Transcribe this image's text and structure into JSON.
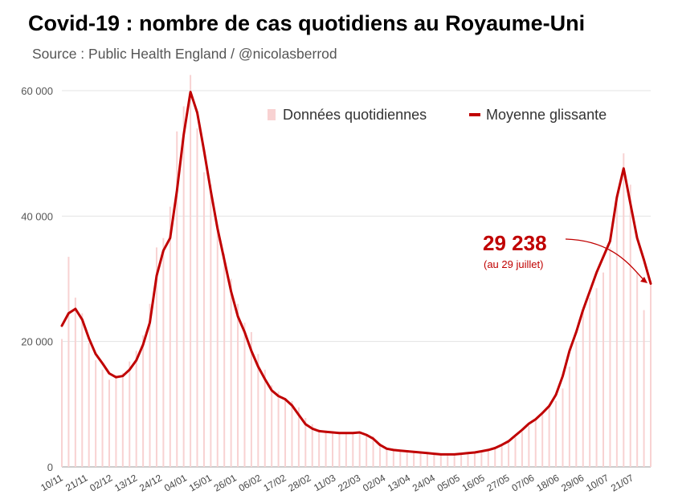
{
  "chart_data": {
    "type": "bar",
    "title": "Covid-19 : nombre de cas quotidiens au Royaume-Uni",
    "subtitle": "Source : Public Health England / @nicolasberrod",
    "ylim": [
      0,
      60000
    ],
    "y_ticks": [
      "0",
      "20 000",
      "40 000",
      "60 000"
    ],
    "grid": true,
    "legend_position": "top-right",
    "x_ticks": [
      "10/11",
      "21/11",
      "02/12",
      "13/12",
      "24/12",
      "04/01",
      "15/01",
      "26/01",
      "06/02",
      "17/02",
      "28/02",
      "11/03",
      "22/03",
      "02/04",
      "13/04",
      "24/04",
      "05/05",
      "16/05",
      "27/05",
      "07/06",
      "18/06",
      "29/06",
      "10/07",
      "21/07"
    ],
    "x_range": [
      "2020-11-10",
      "2021-07-29"
    ],
    "series": [
      {
        "name": "Données quotidiennes",
        "kind": "bar",
        "color": "#f8d2d2",
        "x": [
          "2020-11-10",
          "2020-11-13",
          "2020-11-16",
          "2020-11-19",
          "2020-11-22",
          "2020-11-25",
          "2020-11-28",
          "2020-12-01",
          "2020-12-04",
          "2020-12-07",
          "2020-12-10",
          "2020-12-13",
          "2020-12-16",
          "2020-12-19",
          "2020-12-22",
          "2020-12-25",
          "2020-12-28",
          "2020-12-31",
          "2021-01-03",
          "2021-01-06",
          "2021-01-09",
          "2021-01-12",
          "2021-01-15",
          "2021-01-18",
          "2021-01-21",
          "2021-01-24",
          "2021-01-27",
          "2021-01-30",
          "2021-02-02",
          "2021-02-05",
          "2021-02-08",
          "2021-02-11",
          "2021-02-14",
          "2021-02-17",
          "2021-02-20",
          "2021-02-23",
          "2021-02-26",
          "2021-03-01",
          "2021-03-04",
          "2021-03-07",
          "2021-03-10",
          "2021-03-13",
          "2021-03-16",
          "2021-03-19",
          "2021-03-22",
          "2021-03-25",
          "2021-03-28",
          "2021-03-31",
          "2021-04-03",
          "2021-04-06",
          "2021-04-09",
          "2021-04-12",
          "2021-04-15",
          "2021-04-18",
          "2021-04-21",
          "2021-04-24",
          "2021-04-27",
          "2021-04-30",
          "2021-05-03",
          "2021-05-06",
          "2021-05-09",
          "2021-05-12",
          "2021-05-15",
          "2021-05-18",
          "2021-05-21",
          "2021-05-24",
          "2021-05-27",
          "2021-05-30",
          "2021-06-02",
          "2021-06-05",
          "2021-06-08",
          "2021-06-11",
          "2021-06-14",
          "2021-06-17",
          "2021-06-20",
          "2021-06-23",
          "2021-06-26",
          "2021-06-29",
          "2021-07-02",
          "2021-07-05",
          "2021-07-08",
          "2021-07-11",
          "2021-07-14",
          "2021-07-17",
          "2021-07-20",
          "2021-07-23",
          "2021-07-26",
          "2021-07-29"
        ],
        "values": [
          20400,
          33500,
          27000,
          24500,
          19800,
          17000,
          15500,
          13900,
          14600,
          15000,
          16800,
          18500,
          21000,
          26000,
          35000,
          36500,
          41500,
          53500,
          57500,
          62500,
          54000,
          47000,
          45000,
          38000,
          34000,
          30000,
          26000,
          23000,
          21500,
          18000,
          15500,
          13000,
          12000,
          11000,
          10500,
          9500,
          7800,
          6800,
          6000,
          5800,
          5700,
          5500,
          5500,
          5400,
          5500,
          5200,
          4900,
          3800,
          3000,
          2600,
          2500,
          2500,
          2400,
          2300,
          2200,
          2100,
          2000,
          1900,
          1900,
          2100,
          2200,
          2300,
          2500,
          2700,
          2900,
          3300,
          3900,
          4700,
          5600,
          6500,
          7500,
          8600,
          9500,
          10500,
          12500,
          16000,
          20000,
          25000,
          27000,
          28500,
          31000,
          35000,
          42000,
          50000,
          45000,
          31000,
          25000,
          29238
        ]
      },
      {
        "name": "Moyenne glissante",
        "kind": "line",
        "color": "#c00000",
        "x": [
          "2020-11-10",
          "2020-11-13",
          "2020-11-16",
          "2020-11-19",
          "2020-11-22",
          "2020-11-25",
          "2020-11-28",
          "2020-12-01",
          "2020-12-04",
          "2020-12-07",
          "2020-12-10",
          "2020-12-13",
          "2020-12-16",
          "2020-12-19",
          "2020-12-22",
          "2020-12-25",
          "2020-12-28",
          "2020-12-31",
          "2021-01-03",
          "2021-01-06",
          "2021-01-09",
          "2021-01-12",
          "2021-01-15",
          "2021-01-18",
          "2021-01-21",
          "2021-01-24",
          "2021-01-27",
          "2021-01-30",
          "2021-02-02",
          "2021-02-05",
          "2021-02-08",
          "2021-02-11",
          "2021-02-14",
          "2021-02-17",
          "2021-02-20",
          "2021-02-23",
          "2021-02-26",
          "2021-03-01",
          "2021-03-04",
          "2021-03-07",
          "2021-03-10",
          "2021-03-13",
          "2021-03-16",
          "2021-03-19",
          "2021-03-22",
          "2021-03-25",
          "2021-03-28",
          "2021-03-31",
          "2021-04-03",
          "2021-04-06",
          "2021-04-09",
          "2021-04-12",
          "2021-04-15",
          "2021-04-18",
          "2021-04-21",
          "2021-04-24",
          "2021-04-27",
          "2021-04-30",
          "2021-05-03",
          "2021-05-06",
          "2021-05-09",
          "2021-05-12",
          "2021-05-15",
          "2021-05-18",
          "2021-05-21",
          "2021-05-24",
          "2021-05-27",
          "2021-05-30",
          "2021-06-02",
          "2021-06-05",
          "2021-06-08",
          "2021-06-11",
          "2021-06-14",
          "2021-06-17",
          "2021-06-20",
          "2021-06-23",
          "2021-06-26",
          "2021-06-29",
          "2021-07-02",
          "2021-07-05",
          "2021-07-08",
          "2021-07-11",
          "2021-07-14",
          "2021-07-17",
          "2021-07-20",
          "2021-07-23",
          "2021-07-26",
          "2021-07-29"
        ],
        "values": [
          22500,
          24500,
          25200,
          23500,
          20500,
          18000,
          16500,
          14900,
          14300,
          14500,
          15500,
          17000,
          19500,
          23000,
          30500,
          34500,
          36500,
          44000,
          53000,
          59800,
          56500,
          50500,
          44000,
          38000,
          33000,
          28000,
          24000,
          21500,
          18500,
          16000,
          14000,
          12200,
          11300,
          10800,
          9800,
          8300,
          6800,
          6100,
          5700,
          5600,
          5500,
          5400,
          5400,
          5400,
          5500,
          5100,
          4500,
          3500,
          2900,
          2700,
          2600,
          2500,
          2400,
          2300,
          2200,
          2100,
          2000,
          2000,
          2000,
          2100,
          2200,
          2300,
          2500,
          2700,
          3000,
          3500,
          4100,
          5000,
          5900,
          6900,
          7600,
          8600,
          9700,
          11500,
          14500,
          18500,
          21500,
          25000,
          28000,
          31000,
          33500,
          36000,
          43000,
          47600,
          42000,
          36500,
          33000,
          29238
        ]
      }
    ],
    "annotation": {
      "value": "29 238",
      "note": "(au 29 juillet)"
    }
  }
}
